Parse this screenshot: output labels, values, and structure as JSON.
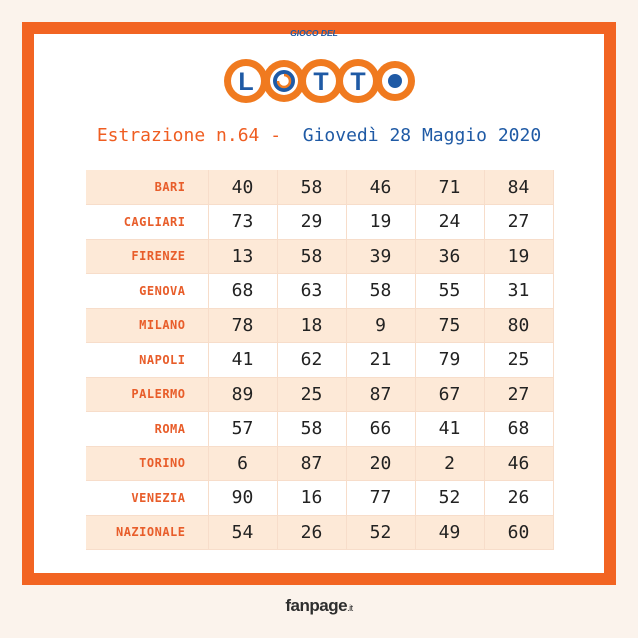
{
  "logo": {
    "small_text": "GIOCO DEL",
    "word": "LOTTO"
  },
  "heading": {
    "part1": "Estrazione n.64 -",
    "part2": "Giovedì 28 Maggio 2020"
  },
  "colors": {
    "accent_orange": "#f26422",
    "blue": "#1f5aa5",
    "row_shade": "#fde9d7"
  },
  "draws": [
    {
      "city": "BARI",
      "numbers": [
        "40",
        "58",
        "46",
        "71",
        "84"
      ]
    },
    {
      "city": "CAGLIARI",
      "numbers": [
        "73",
        "29",
        "19",
        "24",
        "27"
      ]
    },
    {
      "city": "FIRENZE",
      "numbers": [
        "13",
        "58",
        "39",
        "36",
        "19"
      ]
    },
    {
      "city": "GENOVA",
      "numbers": [
        "68",
        "63",
        "58",
        "55",
        "31"
      ]
    },
    {
      "city": "MILANO",
      "numbers": [
        "78",
        "18",
        "9",
        "75",
        "80"
      ]
    },
    {
      "city": "NAPOLI",
      "numbers": [
        "41",
        "62",
        "21",
        "79",
        "25"
      ]
    },
    {
      "city": "PALERMO",
      "numbers": [
        "89",
        "25",
        "87",
        "67",
        "27"
      ]
    },
    {
      "city": "ROMA",
      "numbers": [
        "57",
        "58",
        "66",
        "41",
        "68"
      ]
    },
    {
      "city": "TORINO",
      "numbers": [
        "6",
        "87",
        "20",
        "2",
        "46"
      ]
    },
    {
      "city": "VENEZIA",
      "numbers": [
        "90",
        "16",
        "77",
        "52",
        "26"
      ]
    },
    {
      "city": "NAZIONALE",
      "numbers": [
        "54",
        "26",
        "52",
        "49",
        "60"
      ]
    }
  ],
  "footer": {
    "brand": "fanpage",
    "suffix": ".it"
  }
}
